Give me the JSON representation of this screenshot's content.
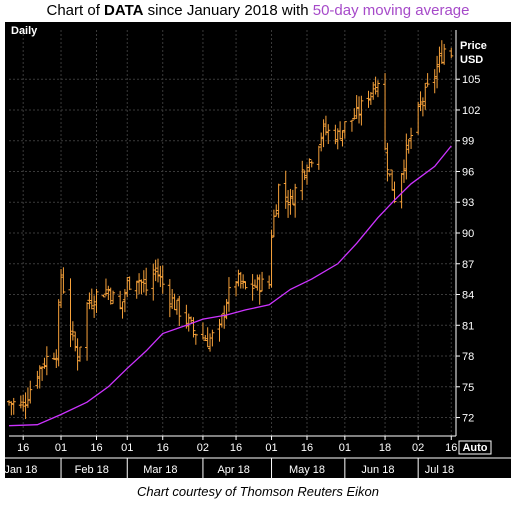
{
  "header": {
    "title_prefix": "Chart of ",
    "ticker": "DATA",
    "title_mid": " since January 2018 with ",
    "ma_label": "50-day moving average"
  },
  "footer": {
    "credit": "Chart courtesy of Thomson Reuters Eikon"
  },
  "colors": {
    "background": "#000000",
    "price_bars": "#f7a23b",
    "moving_average": "#cc33ff",
    "text": "#ffffff",
    "grid": "#3a3a3a"
  },
  "chart_data": {
    "type": "line",
    "period_label": "Daily",
    "y_axis_title": [
      "Price",
      "USD"
    ],
    "auto_label": "Auto",
    "ylim": [
      70.2,
      109.8
    ],
    "y_ticks": [
      72,
      75,
      78,
      81,
      84,
      87,
      90,
      93,
      96,
      99,
      102,
      105
    ],
    "x_start": "2018-01-10",
    "x_end": "2018-07-18",
    "x_tick_dates": [
      "2018-01-16",
      "2018-02-01",
      "2018-02-16",
      "2018-03-01",
      "2018-03-16",
      "2018-04-02",
      "2018-04-16",
      "2018-05-01",
      "2018-05-16",
      "2018-06-01",
      "2018-06-18",
      "2018-07-02",
      "2018-07-16"
    ],
    "x_tick_labels": [
      "16",
      "01",
      "16",
      "01",
      "16",
      "02",
      "16",
      "01",
      "16",
      "01",
      "18",
      "02",
      "16"
    ],
    "month_labels": [
      "Jan 18",
      "Feb 18",
      "Mar 18",
      "Apr 18",
      "May 18",
      "Jun 18",
      "Jul 18"
    ],
    "month_label_dates": [
      "2018-01-15",
      "2018-02-14",
      "2018-03-15",
      "2018-04-15",
      "2018-05-16",
      "2018-06-15",
      "2018-07-11"
    ],
    "month_boundaries": [
      "2018-02-01",
      "2018-03-01",
      "2018-04-02",
      "2018-05-01",
      "2018-06-01",
      "2018-07-02"
    ],
    "price_series": {
      "x": [
        "2018-01-10",
        "2018-01-16",
        "2018-01-22",
        "2018-01-26",
        "2018-01-30",
        "2018-02-01",
        "2018-02-05",
        "2018-02-08",
        "2018-02-12",
        "2018-02-16",
        "2018-02-21",
        "2018-02-26",
        "2018-03-01",
        "2018-03-05",
        "2018-03-09",
        "2018-03-13",
        "2018-03-16",
        "2018-03-21",
        "2018-03-26",
        "2018-03-29",
        "2018-04-04",
        "2018-04-09",
        "2018-04-12",
        "2018-04-16",
        "2018-04-20",
        "2018-04-25",
        "2018-04-30",
        "2018-05-01",
        "2018-05-04",
        "2018-05-09",
        "2018-05-14",
        "2018-05-18",
        "2018-05-23",
        "2018-05-29",
        "2018-06-01",
        "2018-06-06",
        "2018-06-11",
        "2018-06-15",
        "2018-06-18",
        "2018-06-20",
        "2018-06-22",
        "2018-06-26",
        "2018-06-29",
        "2018-07-03",
        "2018-07-09",
        "2018-07-13",
        "2018-07-16"
      ],
      "close": [
        73.5,
        73.2,
        76.5,
        77.8,
        78.5,
        86.0,
        80.5,
        78.0,
        83.0,
        84.0,
        84.5,
        82.5,
        85.0,
        85.8,
        84.5,
        86.5,
        85.0,
        83.0,
        81.5,
        80.5,
        79.5,
        80.5,
        83.5,
        85.5,
        84.5,
        85.0,
        85.0,
        90.0,
        94.5,
        93.0,
        96.0,
        97.5,
        100.0,
        99.5,
        100.5,
        101.5,
        103.5,
        105.0,
        98.0,
        95.5,
        93.5,
        97.0,
        99.5,
        102.5,
        105.5,
        108.0,
        107.5
      ]
    },
    "moving_average": {
      "x": [
        "2018-01-10",
        "2018-01-22",
        "2018-02-01",
        "2018-02-12",
        "2018-02-21",
        "2018-03-01",
        "2018-03-09",
        "2018-03-16",
        "2018-03-26",
        "2018-04-02",
        "2018-04-12",
        "2018-04-20",
        "2018-04-30",
        "2018-05-09",
        "2018-05-18",
        "2018-05-29",
        "2018-06-06",
        "2018-06-15",
        "2018-06-22",
        "2018-06-29",
        "2018-07-09",
        "2018-07-16"
      ],
      "values": [
        71.2,
        71.3,
        72.3,
        73.5,
        75.0,
        76.8,
        78.5,
        80.2,
        81.0,
        81.6,
        82.0,
        82.5,
        83.0,
        84.5,
        85.5,
        87.0,
        89.0,
        91.5,
        93.2,
        94.8,
        96.5,
        98.5
      ]
    }
  }
}
